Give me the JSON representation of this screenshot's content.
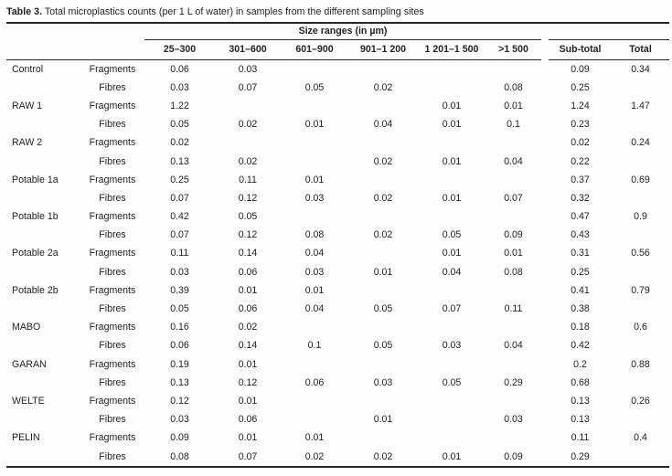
{
  "caption": {
    "label": "Table 3.",
    "text": "Total microplastics counts (per 1 L of water) in samples from the different sampling sites"
  },
  "table": {
    "size_group_header": "Size ranges (in µm)",
    "size_columns": [
      "25–300",
      "301–600",
      "601–900",
      "901–1 200",
      "1 201–1 500",
      ">1 500"
    ],
    "subtotal_header": "Sub-total",
    "total_header": "Total",
    "rows": [
      {
        "site": "Control",
        "type": "Fragments",
        "values": [
          "0.06",
          "0.03",
          "",
          "",
          "",
          ""
        ],
        "subtotal": "0.09",
        "total": "0.34"
      },
      {
        "site": "",
        "type": "Fibres",
        "values": [
          "0.03",
          "0.07",
          "0.05",
          "0.02",
          "",
          "0.08"
        ],
        "subtotal": "0.25",
        "total": ""
      },
      {
        "site": "RAW 1",
        "type": "Fragments",
        "values": [
          "1.22",
          "",
          "",
          "",
          "0.01",
          "0.01"
        ],
        "subtotal": "1.24",
        "total": "1.47"
      },
      {
        "site": "",
        "type": "Fibres",
        "values": [
          "0.05",
          "0.02",
          "0.01",
          "0.04",
          "0.01",
          "0.1"
        ],
        "subtotal": "0.23",
        "total": ""
      },
      {
        "site": "RAW 2",
        "type": "Fragments",
        "values": [
          "0.02",
          "",
          "",
          "",
          "",
          ""
        ],
        "subtotal": "0.02",
        "total": "0.24"
      },
      {
        "site": "",
        "type": "Fibres",
        "values": [
          "0.13",
          "0.02",
          "",
          "0.02",
          "0.01",
          "0.04"
        ],
        "subtotal": "0.22",
        "total": ""
      },
      {
        "site": "Potable 1a",
        "type": "Fragments",
        "values": [
          "0.25",
          "0.11",
          "0.01",
          "",
          "",
          ""
        ],
        "subtotal": "0.37",
        "total": "0.69"
      },
      {
        "site": "",
        "type": "Fibres",
        "values": [
          "0.07",
          "0.12",
          "0.03",
          "0.02",
          "0.01",
          "0.07"
        ],
        "subtotal": "0.32",
        "total": ""
      },
      {
        "site": "Potable 1b",
        "type": "Fragments",
        "values": [
          "0.42",
          "0.05",
          "",
          "",
          "",
          ""
        ],
        "subtotal": "0.47",
        "total": "0.9"
      },
      {
        "site": "",
        "type": "Fibres",
        "values": [
          "0.07",
          "0.12",
          "0.08",
          "0.02",
          "0.05",
          "0.09"
        ],
        "subtotal": "0.43",
        "total": ""
      },
      {
        "site": "Potable 2a",
        "type": "Fragments",
        "values": [
          "0.11",
          "0.14",
          "0.04",
          "",
          "0.01",
          "0.01"
        ],
        "subtotal": "0.31",
        "total": "0.56"
      },
      {
        "site": "",
        "type": "Fibres",
        "values": [
          "0.03",
          "0.06",
          "0.03",
          "0.01",
          "0.04",
          "0.08"
        ],
        "subtotal": "0.25",
        "total": ""
      },
      {
        "site": "Potable 2b",
        "type": "Fragments",
        "values": [
          "0.39",
          "0.01",
          "0.01",
          "",
          "",
          ""
        ],
        "subtotal": "0.41",
        "total": "0.79"
      },
      {
        "site": "",
        "type": "Fibres",
        "values": [
          "0.05",
          "0.06",
          "0.04",
          "0.05",
          "0.07",
          "0.11"
        ],
        "subtotal": "0.38",
        "total": ""
      },
      {
        "site": "MABO",
        "type": "Fragments",
        "values": [
          "0.16",
          "0.02",
          "",
          "",
          "",
          ""
        ],
        "subtotal": "0.18",
        "total": "0.6"
      },
      {
        "site": "",
        "type": "Fibres",
        "values": [
          "0.06",
          "0.14",
          "0.1",
          "0.05",
          "0.03",
          "0.04"
        ],
        "subtotal": "0.42",
        "total": ""
      },
      {
        "site": "GARAN",
        "type": "Fragments",
        "values": [
          "0.19",
          "0.01",
          "",
          "",
          "",
          ""
        ],
        "subtotal": "0.2",
        "total": "0.88"
      },
      {
        "site": "",
        "type": "Fibres",
        "values": [
          "0.13",
          "0.12",
          "0.06",
          "0.03",
          "0.05",
          "0.29"
        ],
        "subtotal": "0.68",
        "total": ""
      },
      {
        "site": "WELTE",
        "type": "Fragments",
        "values": [
          "0.12",
          "0.01",
          "",
          "",
          "",
          ""
        ],
        "subtotal": "0.13",
        "total": "0.26"
      },
      {
        "site": "",
        "type": "Fibres",
        "values": [
          "0.03",
          "0.06",
          "",
          "0.01",
          "",
          "0.03"
        ],
        "subtotal": "0.13",
        "total": ""
      },
      {
        "site": "PELIN",
        "type": "Fragments",
        "values": [
          "0.09",
          "0.01",
          "0.01",
          "",
          "",
          ""
        ],
        "subtotal": "0.11",
        "total": "0.4"
      },
      {
        "site": "",
        "type": "Fibres",
        "values": [
          "0.08",
          "0.07",
          "0.02",
          "0.02",
          "0.01",
          "0.09"
        ],
        "subtotal": "0.29",
        "total": ""
      }
    ]
  }
}
